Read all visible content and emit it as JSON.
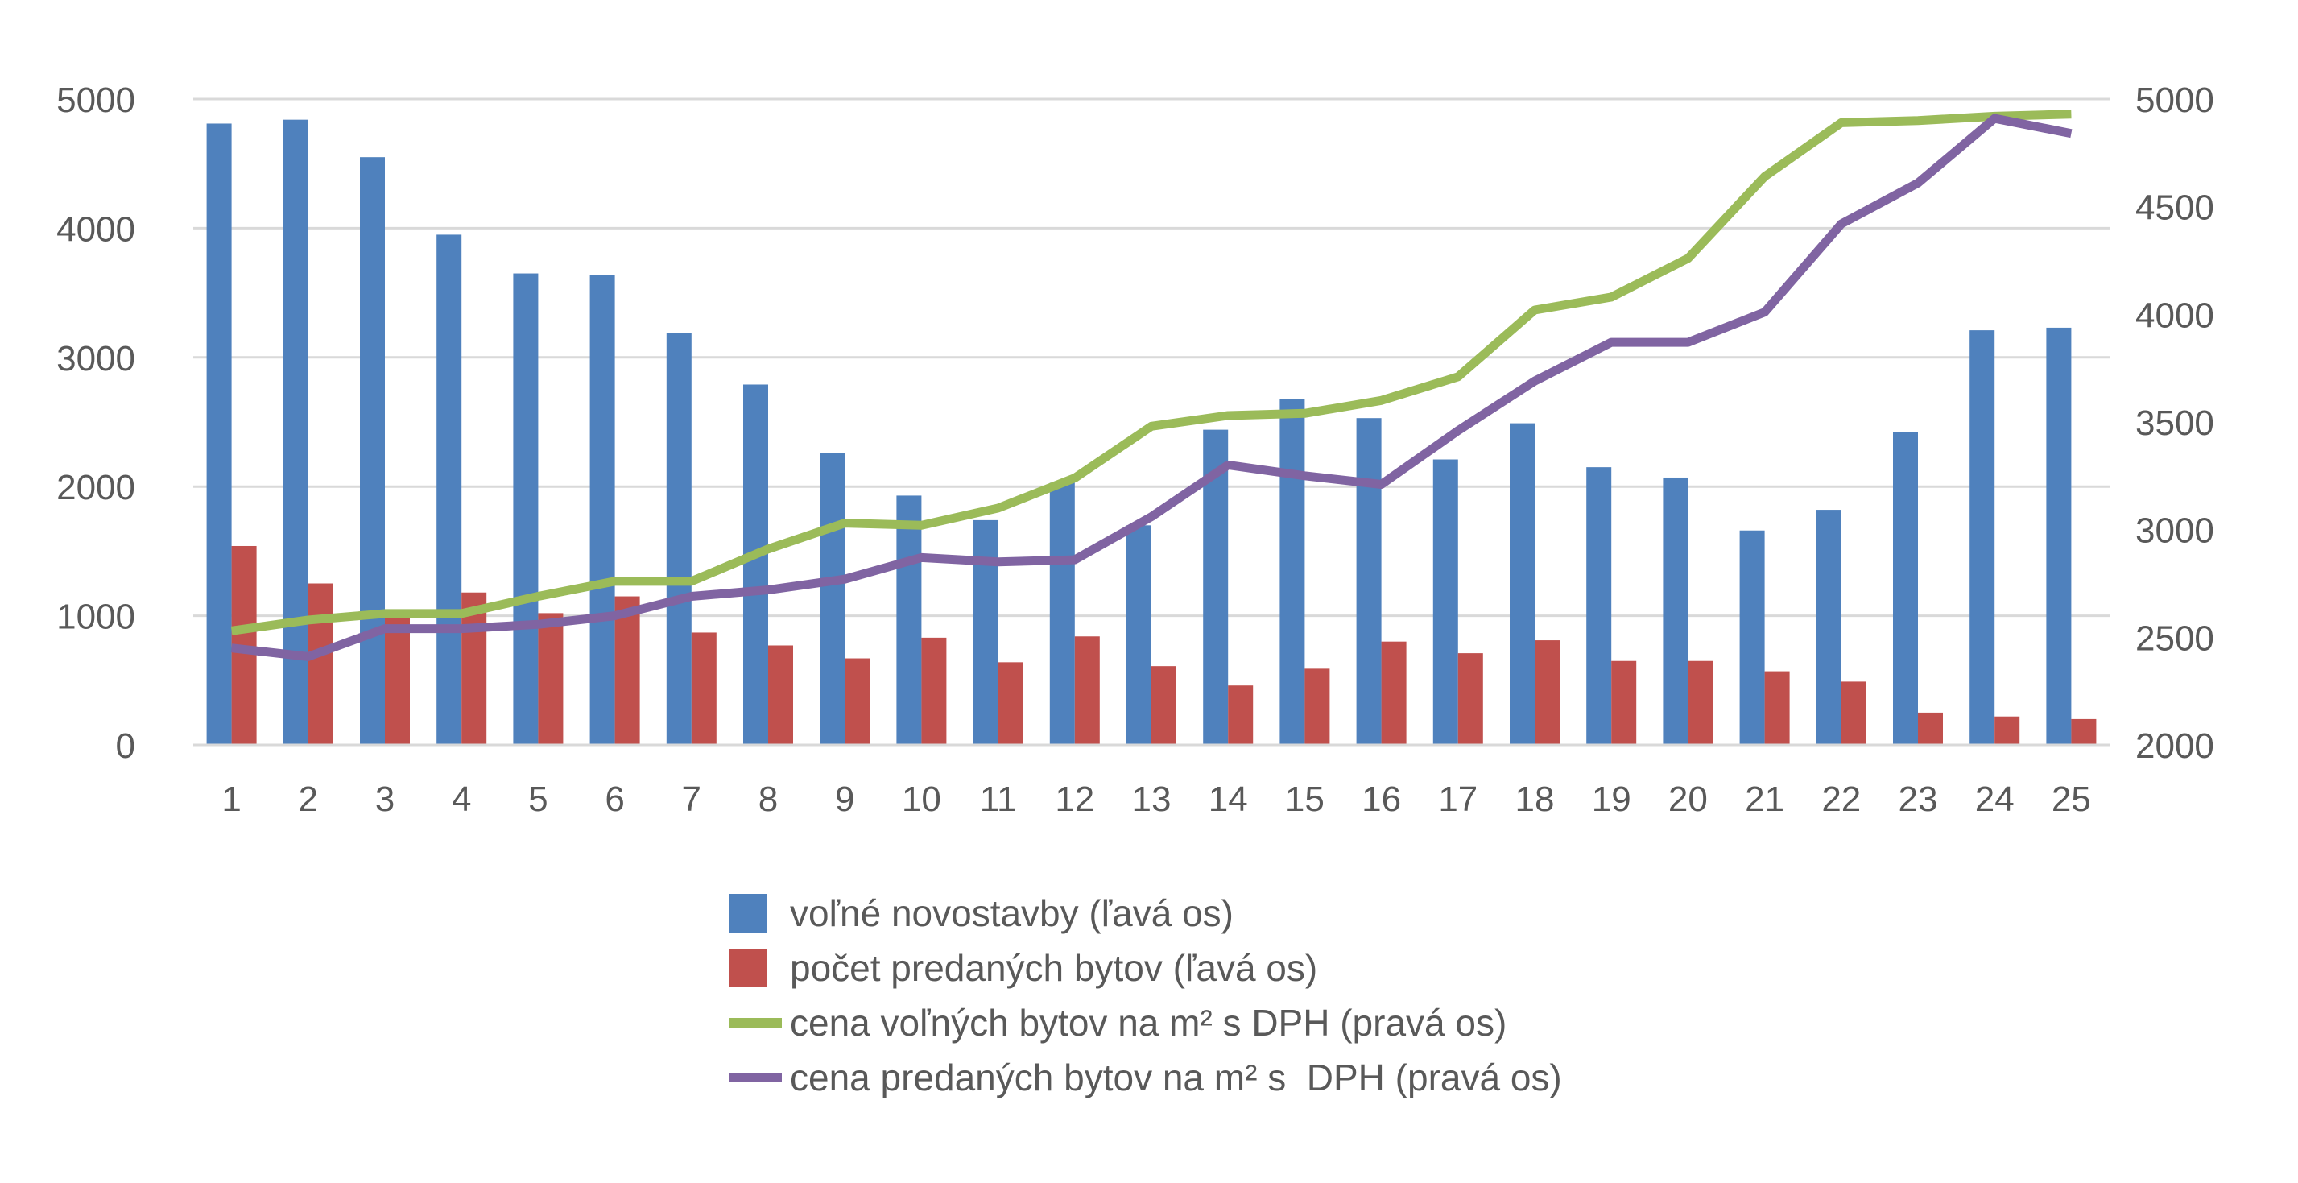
{
  "chart_data": {
    "type": "bar",
    "title": "",
    "categories": [
      "1",
      "2",
      "3",
      "4",
      "5",
      "6",
      "7",
      "8",
      "9",
      "10",
      "11",
      "12",
      "13",
      "14",
      "15",
      "16",
      "17",
      "18",
      "19",
      "20",
      "21",
      "22",
      "23",
      "24",
      "25"
    ],
    "left_axis": {
      "ylim": [
        0,
        5000
      ],
      "ticks": [
        "0",
        "1000",
        "2000",
        "3000",
        "4000",
        "5000"
      ]
    },
    "right_axis": {
      "ylim": [
        2000,
        5000
      ],
      "ticks": [
        "2000",
        "2500",
        "3000",
        "3500",
        "4000",
        "4500",
        "5000"
      ]
    },
    "grid": true,
    "legend_position": "bottom",
    "series": [
      {
        "name": "voľné novostavby (ľavá os)",
        "kind": "bar",
        "axis": "left",
        "color": "#4F81BD",
        "values": [
          4810,
          4840,
          4550,
          3950,
          3650,
          3640,
          3190,
          2790,
          2260,
          1930,
          1740,
          2030,
          1700,
          2440,
          2680,
          2530,
          2210,
          2490,
          2150,
          2070,
          1660,
          1820,
          2420,
          3210,
          3230
        ]
      },
      {
        "name": "počet predaných bytov (ľavá os)",
        "kind": "bar",
        "axis": "left",
        "color": "#C0504D",
        "values": [
          1540,
          1250,
          1040,
          1180,
          1020,
          1150,
          870,
          770,
          670,
          830,
          640,
          840,
          610,
          460,
          590,
          800,
          710,
          810,
          650,
          650,
          570,
          490,
          250,
          220,
          200
        ]
      },
      {
        "name": "cena voľných bytov na m² s DPH (pravá os)",
        "kind": "line",
        "axis": "right",
        "color": "#9BBB59",
        "values": [
          2530,
          2580,
          2610,
          2610,
          2690,
          2760,
          2760,
          2910,
          3030,
          3020,
          3100,
          3240,
          3480,
          3530,
          3540,
          3600,
          3710,
          4020,
          4080,
          4260,
          4640,
          4890,
          4900,
          4920,
          4930
        ]
      },
      {
        "name": "cena predaných bytov na m² s  DPH (pravá os)",
        "kind": "line",
        "axis": "right",
        "color": "#8064A2",
        "values": [
          2450,
          2410,
          2540,
          2540,
          2560,
          2600,
          2690,
          2720,
          2770,
          2870,
          2850,
          2860,
          3060,
          3300,
          3250,
          3210,
          3460,
          3690,
          3870,
          3870,
          4010,
          4420,
          4610,
          4910,
          4840
        ]
      }
    ]
  }
}
